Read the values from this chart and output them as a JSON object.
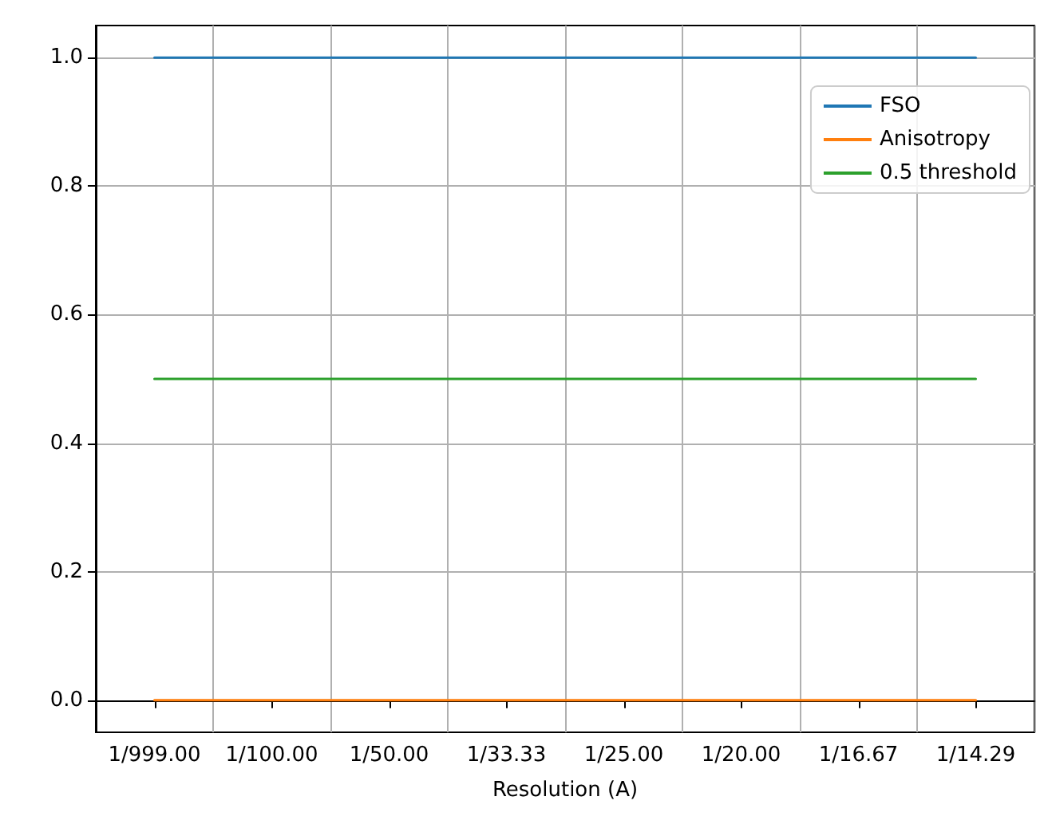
{
  "chart_data": {
    "type": "line",
    "xlabel": "Resolution (A)",
    "categories": [
      "1/999.00",
      "1/100.00",
      "1/50.00",
      "1/33.33",
      "1/25.00",
      "1/20.00",
      "1/16.67",
      "1/14.29"
    ],
    "series": [
      {
        "name": "FSO",
        "color": "#1f77b4",
        "values": [
          1,
          1,
          1,
          1,
          1,
          1,
          1,
          1
        ]
      },
      {
        "name": "Anisotropy",
        "color": "#ff7f0e",
        "values": [
          0,
          0,
          0,
          0,
          0,
          0,
          0,
          0
        ]
      },
      {
        "name": "0.5 threshold",
        "color": "#2ca02c",
        "values": [
          0.5,
          0.5,
          0.5,
          0.5,
          0.5,
          0.5,
          0.5,
          0.5
        ]
      }
    ],
    "ylim": [
      -0.05,
      1.05
    ],
    "yticks": [
      {
        "value": 0,
        "label": "0.0"
      },
      {
        "value": 0.2,
        "label": "0.2"
      },
      {
        "value": 0.4,
        "label": "0.4"
      },
      {
        "value": 0.6,
        "label": "0.6"
      },
      {
        "value": 0.8,
        "label": "0.8"
      },
      {
        "value": 1,
        "label": "1.0"
      }
    ],
    "grid": true,
    "legend": "top right",
    "marker": "none",
    "line_style": "solid"
  }
}
